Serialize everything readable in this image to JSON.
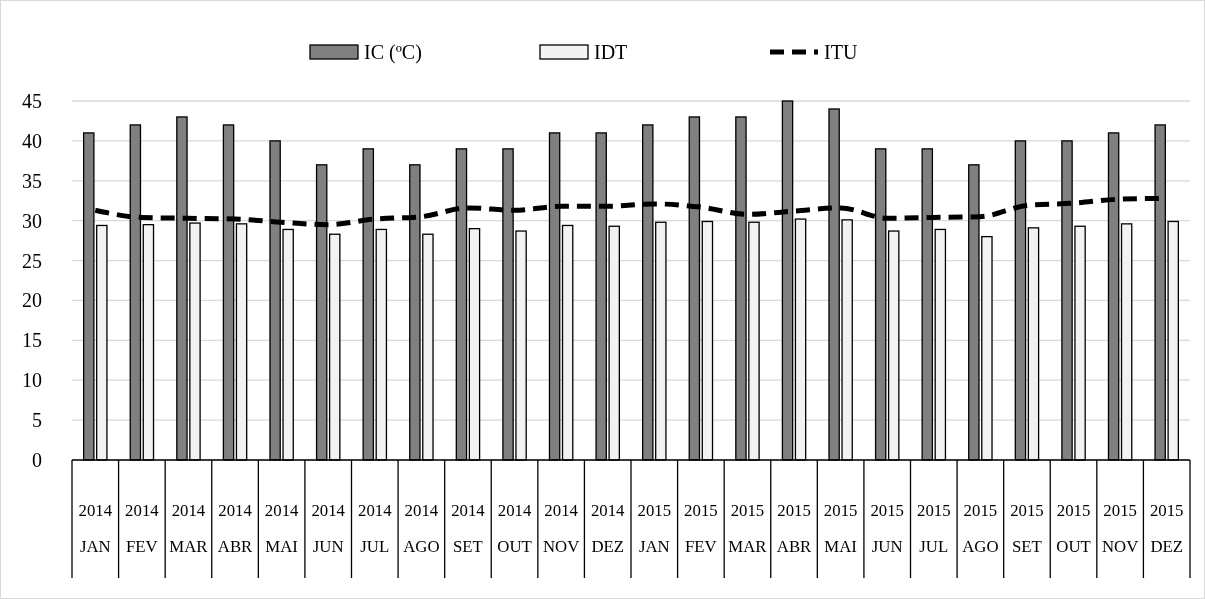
{
  "chart_data": {
    "type": "bar",
    "categories": [
      "2014\nJAN",
      "2014\nFEV",
      "2014\nMAR",
      "2014\nABR",
      "2014\nMAI",
      "2014\nJUN",
      "2014\nJUL",
      "2014\nAGO",
      "2014\nSET",
      "2014\nOUT",
      "2014\nNOV",
      "2014\nDEZ",
      "2015\nJAN",
      "2015\nFEV",
      "2015\nMAR",
      "2015\nABR",
      "2015\nMAI",
      "2015\nJUN",
      "2015\nJUL",
      "2015\nAGO",
      "2015\nSET",
      "2015\nOUT",
      "2015\nNOV",
      "2015\nDEZ"
    ],
    "series": [
      {
        "name": "IC (ºC)",
        "color": "#808080",
        "values": [
          41,
          42,
          43,
          42,
          40,
          37,
          39,
          37,
          39,
          39,
          41,
          41,
          42,
          43,
          43,
          45,
          44,
          39,
          39,
          37,
          40,
          40,
          41,
          42
        ]
      },
      {
        "name": "IDT",
        "color": "#f2f2f2",
        "values": [
          29.4,
          29.5,
          29.7,
          29.6,
          28.9,
          28.3,
          28.9,
          28.3,
          29.0,
          28.7,
          29.4,
          29.3,
          29.8,
          29.9,
          29.8,
          30.2,
          30.1,
          28.7,
          28.9,
          28.0,
          29.1,
          29.3,
          29.6,
          29.9
        ]
      },
      {
        "name": "ITU",
        "type": "line",
        "color": "#000000",
        "line_style": "dashed",
        "values": [
          31.3,
          30.4,
          30.3,
          30.2,
          29.8,
          29.5,
          30.2,
          30.5,
          31.6,
          31.3,
          31.8,
          31.8,
          32.1,
          31.7,
          30.8,
          31.2,
          31.6,
          30.3,
          30.4,
          30.5,
          31.9,
          32.2,
          32.7,
          32.8
        ]
      }
    ],
    "ylim": [
      0,
      45
    ],
    "yticks": [
      0,
      5,
      10,
      15,
      20,
      25,
      30,
      35,
      40,
      45
    ],
    "grid": "y",
    "legend": "top"
  }
}
